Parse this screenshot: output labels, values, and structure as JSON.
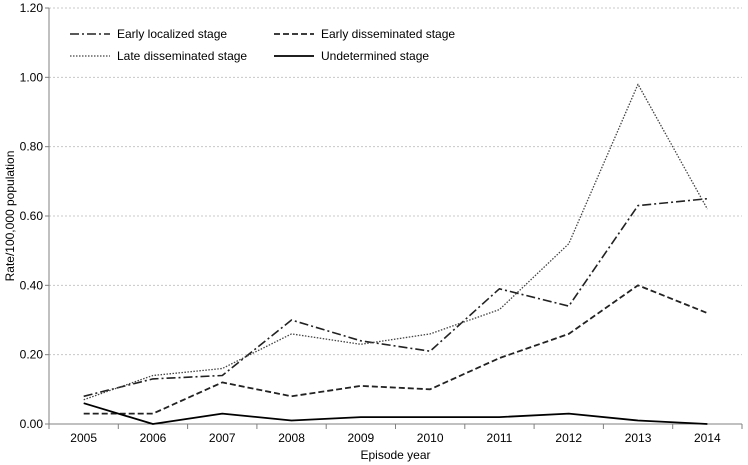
{
  "chart_data": {
    "type": "line",
    "xlabel": "Episode year",
    "ylabel": "Rate/100,000  population",
    "categories": [
      "2005",
      "2006",
      "2007",
      "2008",
      "2009",
      "2010",
      "2011",
      "2012",
      "2013",
      "2014"
    ],
    "ylim": [
      0,
      1.2
    ],
    "yticks": [
      "0.00",
      "0.20",
      "0.40",
      "0.60",
      "0.80",
      "1.00",
      "1.20"
    ],
    "grid": true,
    "legend_position": "top-left",
    "series": [
      {
        "name": "Early localized stage",
        "style": "dashdot",
        "color": "#222222",
        "values": [
          0.08,
          0.13,
          0.14,
          0.3,
          0.24,
          0.21,
          0.39,
          0.34,
          0.63,
          0.65
        ]
      },
      {
        "name": "Early disseminated stage",
        "style": "dashed",
        "color": "#222222",
        "values": [
          0.03,
          0.03,
          0.12,
          0.08,
          0.11,
          0.1,
          0.19,
          0.26,
          0.4,
          0.32
        ]
      },
      {
        "name": "Late disseminated stage",
        "style": "dotted",
        "color": "#444444",
        "values": [
          0.07,
          0.14,
          0.16,
          0.26,
          0.23,
          0.26,
          0.33,
          0.52,
          0.98,
          0.62
        ]
      },
      {
        "name": "Undetermined stage",
        "style": "solid",
        "color": "#000000",
        "values": [
          0.06,
          0.0,
          0.03,
          0.01,
          0.02,
          0.02,
          0.02,
          0.03,
          0.01,
          0.0
        ]
      }
    ]
  }
}
